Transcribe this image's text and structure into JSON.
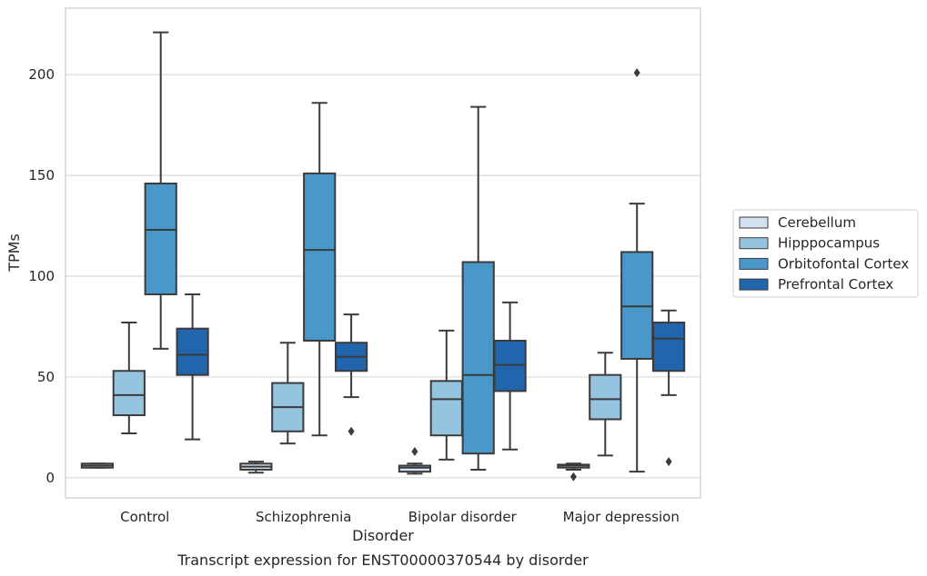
{
  "chart_data": {
    "type": "box",
    "caption": "Transcript expression for ENST00000370544 by disorder",
    "xlabel": "Disorder",
    "ylabel": "TPMs",
    "ylim": [
      -10,
      233
    ],
    "yticks": [
      0,
      50,
      100,
      150,
      200
    ],
    "grid": "horizontal",
    "legend_position": "right",
    "categories": [
      "Control",
      "Schizophrenia",
      "Bipolar disorder",
      "Major depression"
    ],
    "series": [
      {
        "name": "Cerebellum",
        "color": "#d0e2f2",
        "boxes": [
          {
            "whisker_low": 5,
            "q1": 5,
            "median": 6,
            "q3": 7,
            "whisker_high": 7,
            "outliers": []
          },
          {
            "whisker_low": 2.5,
            "q1": 4,
            "median": 5.5,
            "q3": 7,
            "whisker_high": 8,
            "outliers": []
          },
          {
            "whisker_low": 2,
            "q1": 3,
            "median": 5,
            "q3": 6,
            "whisker_high": 7,
            "outliers": [
              13
            ]
          },
          {
            "whisker_low": 4,
            "q1": 5,
            "median": 6,
            "q3": 6.5,
            "whisker_high": 7,
            "outliers": [
              0.5
            ]
          }
        ]
      },
      {
        "name": "Hipppocampus",
        "color": "#94c4df",
        "boxes": [
          {
            "whisker_low": 22,
            "q1": 31,
            "median": 41,
            "q3": 53,
            "whisker_high": 77,
            "outliers": []
          },
          {
            "whisker_low": 17,
            "q1": 23,
            "median": 35,
            "q3": 47,
            "whisker_high": 67,
            "outliers": []
          },
          {
            "whisker_low": 9,
            "q1": 21,
            "median": 39,
            "q3": 48,
            "whisker_high": 73,
            "outliers": []
          },
          {
            "whisker_low": 11,
            "q1": 29,
            "median": 39,
            "q3": 51,
            "whisker_high": 62,
            "outliers": []
          }
        ]
      },
      {
        "name": "Orbitofontal Cortex",
        "color": "#4a98c9",
        "boxes": [
          {
            "whisker_low": 64,
            "q1": 91,
            "median": 123,
            "q3": 146,
            "whisker_high": 221,
            "outliers": []
          },
          {
            "whisker_low": 21,
            "q1": 68,
            "median": 113,
            "q3": 151,
            "whisker_high": 186,
            "outliers": []
          },
          {
            "whisker_low": 4,
            "q1": 12,
            "median": 51,
            "q3": 107,
            "whisker_high": 184,
            "outliers": []
          },
          {
            "whisker_low": 3,
            "q1": 59,
            "median": 85,
            "q3": 112,
            "whisker_high": 136,
            "outliers": [
              201
            ]
          }
        ]
      },
      {
        "name": "Prefrontal Cortex",
        "color": "#2166ac",
        "boxes": [
          {
            "whisker_low": 19,
            "q1": 51,
            "median": 61,
            "q3": 74,
            "whisker_high": 91,
            "outliers": []
          },
          {
            "whisker_low": 40,
            "q1": 53,
            "median": 60,
            "q3": 67,
            "whisker_high": 81,
            "outliers": [
              23
            ]
          },
          {
            "whisker_low": 14,
            "q1": 43,
            "median": 56,
            "q3": 68,
            "whisker_high": 87,
            "outliers": []
          },
          {
            "whisker_low": 41,
            "q1": 53,
            "median": 69,
            "q3": 77,
            "whisker_high": 83,
            "outliers": [
              8
            ]
          }
        ]
      }
    ]
  }
}
